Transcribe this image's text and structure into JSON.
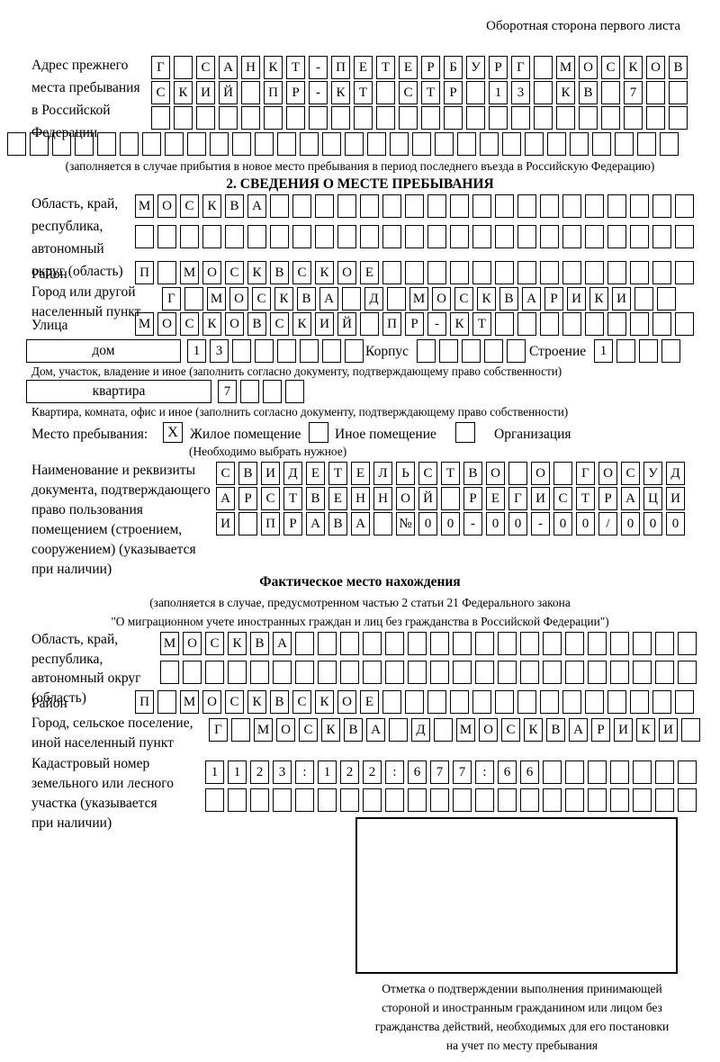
{
  "header": {
    "note": "Оборотная сторона первого листа"
  },
  "section1": {
    "prev_address_label_lines": [
      "Адрес прежнего",
      "места пребывания",
      "в Российской",
      "Федерации"
    ],
    "fill_note": "(заполняется в случае прибытия в новое место пребывания в период последнего въезда в Российскую Федерацию)",
    "title": "2. СВЕДЕНИЯ О МЕСТЕ ПРЕБЫВАНИЯ",
    "region_label_lines": [
      "Область, край,",
      "республика,",
      "автономный",
      "округ (область)"
    ],
    "district_label": "Район",
    "city_label_lines": [
      "Город или другой",
      "населенный пункт"
    ],
    "street_label": "Улица",
    "house_label": "дом",
    "korpus_label": "Корпус",
    "stroenie_label": "Строение",
    "house_caption": "Дом, участок, владение и иное (заполнить согласно документу, подтверждающему право собственности)",
    "flat_label": "квартира",
    "flat_caption": "Квартира, комната, офис и иное (заполнить согласно документу, подтверждающему право собственности)",
    "stay_place_label": "Место пребывания:",
    "residential_label": "Жилое помещение",
    "other_label": "Иное помещение",
    "organization_label": "Организация",
    "choose_note": "(Необходимо выбрать нужное)",
    "doc_label_lines": [
      "Наименование и реквизиты",
      "документа, подтверждающего",
      "право пользования",
      "помещением (строением,",
      "сооружением) (указывается",
      "при наличии)"
    ]
  },
  "section_actual": {
    "title": "Фактическое место нахождения",
    "note_lines": [
      "(заполняется в случае, предусмотренном частью 2 статьи 21 Федерального закона",
      "\"О миграционном учете иностранных граждан и лиц без гражданства в Российской Федерации\")"
    ],
    "region_label_lines": [
      "Область, край,",
      "республика,",
      "автономный округ",
      "(область)"
    ],
    "district_label": "Район",
    "city_label_lines": [
      "Город, сельское поселение,",
      "иной населенный пункт"
    ],
    "cadastre_label_lines": [
      "Кадастровый номер",
      "земельного или лесного",
      "участка (указывается",
      "при наличии)"
    ],
    "stamp_caption_lines": [
      "Отметка о подтверждении выполнения принимающей",
      "стороной и иностранным гражданином или лицом без",
      "гражданства действий, необходимых для его постановки",
      "на учет по месту пребывания"
    ]
  },
  "rows": {
    "prev1": {
      "boxes": 24,
      "value": "Г САНКТ-ПЕТЕРБУРГ МОСКОВ"
    },
    "prev2": {
      "boxes": 24,
      "value": "СКИЙ ПР-КТ СТР 13 КВ 7"
    },
    "prev3": {
      "boxes": 24,
      "value": ""
    },
    "prev4": {
      "boxes": 30,
      "value": ""
    },
    "region1a": {
      "boxes": 25,
      "value": "МОСКВА"
    },
    "region1b": {
      "boxes": 25,
      "value": ""
    },
    "district1": {
      "boxes": 25,
      "value": "П МОСКВСКОЕ"
    },
    "city1": {
      "boxes": 23,
      "value": "Г МОСКВА Д МОСКВАРИКИ"
    },
    "street1": {
      "boxes": 25,
      "value": "МОСКОВСКИЙ ПР-КТ"
    },
    "house_num": {
      "boxes": 8,
      "value": "13"
    },
    "korpus_num": {
      "boxes": 5,
      "value": ""
    },
    "stroenie_num": {
      "boxes": 4,
      "value": "1"
    },
    "flat_num": {
      "boxes": 4,
      "value": "7"
    },
    "chk_residential": {
      "boxes": 1,
      "value": "X"
    },
    "chk_other": {
      "boxes": 1,
      "value": ""
    },
    "chk_org": {
      "boxes": 1,
      "value": ""
    },
    "doc1": {
      "boxes": 21,
      "value": "СВИДЕТЕЛЬСТВО О ГОСУД"
    },
    "doc2": {
      "boxes": 21,
      "value": "АРСТВЕННОЙ РЕГИСТРАЦИ"
    },
    "doc3": {
      "boxes": 21,
      "value": "И ПРАВА №00-00-00/000"
    },
    "region2a": {
      "boxes": 24,
      "value": "МОСКВА"
    },
    "region2b": {
      "boxes": 24,
      "value": ""
    },
    "district2": {
      "boxes": 25,
      "value": "П МОСКВСКОЕ"
    },
    "city2": {
      "boxes": 22,
      "value": "Г МОСКВА Д МОСКВАРИКИ"
    },
    "cadastre1": {
      "boxes": 22,
      "value": "1123:122:677:66"
    },
    "cadastre2": {
      "boxes": 22,
      "value": ""
    }
  }
}
